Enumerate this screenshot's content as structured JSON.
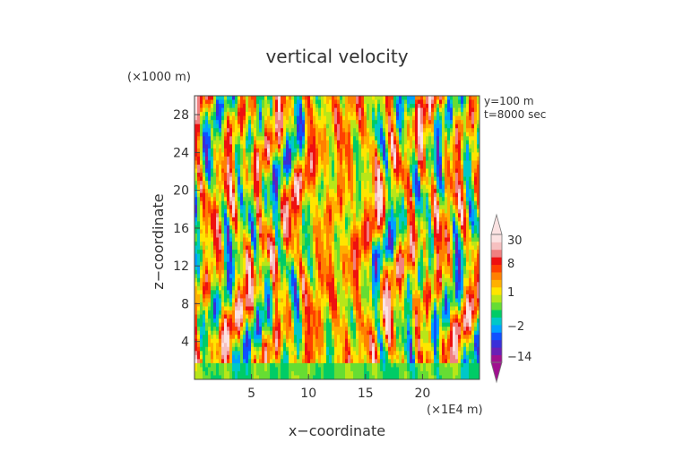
{
  "chart_data": {
    "type": "heatmap",
    "title": "vertical velocity",
    "xlabel": "x−coordinate",
    "ylabel": "z−coordinate",
    "x_unit": "(×1E4 m)",
    "y_unit": "(×1000 m)",
    "annotations": [
      "y=100  m",
      "t=8000 sec"
    ],
    "xlim": [
      0,
      25
    ],
    "ylim": [
      0,
      30
    ],
    "x_ticks": [
      5,
      10,
      15,
      20
    ],
    "y_ticks": [
      4,
      8,
      12,
      16,
      20,
      24,
      28
    ],
    "colorbar": {
      "tick_labels": [
        "30",
        "8",
        "1",
        "−2",
        "−14"
      ],
      "tick_values": [
        30,
        8,
        1,
        -2,
        -14
      ],
      "colors": [
        "#a0108f",
        "#6a1fb5",
        "#3a2fd8",
        "#1050ff",
        "#00a0ff",
        "#00c8c8",
        "#00cc66",
        "#66dd33",
        "#b8e619",
        "#ffe500",
        "#ffb000",
        "#ff8000",
        "#ff4000",
        "#ee1010",
        "#f08080",
        "#f6c0c0",
        "#fbe2e2"
      ],
      "extend": "both"
    },
    "grid": false
  }
}
